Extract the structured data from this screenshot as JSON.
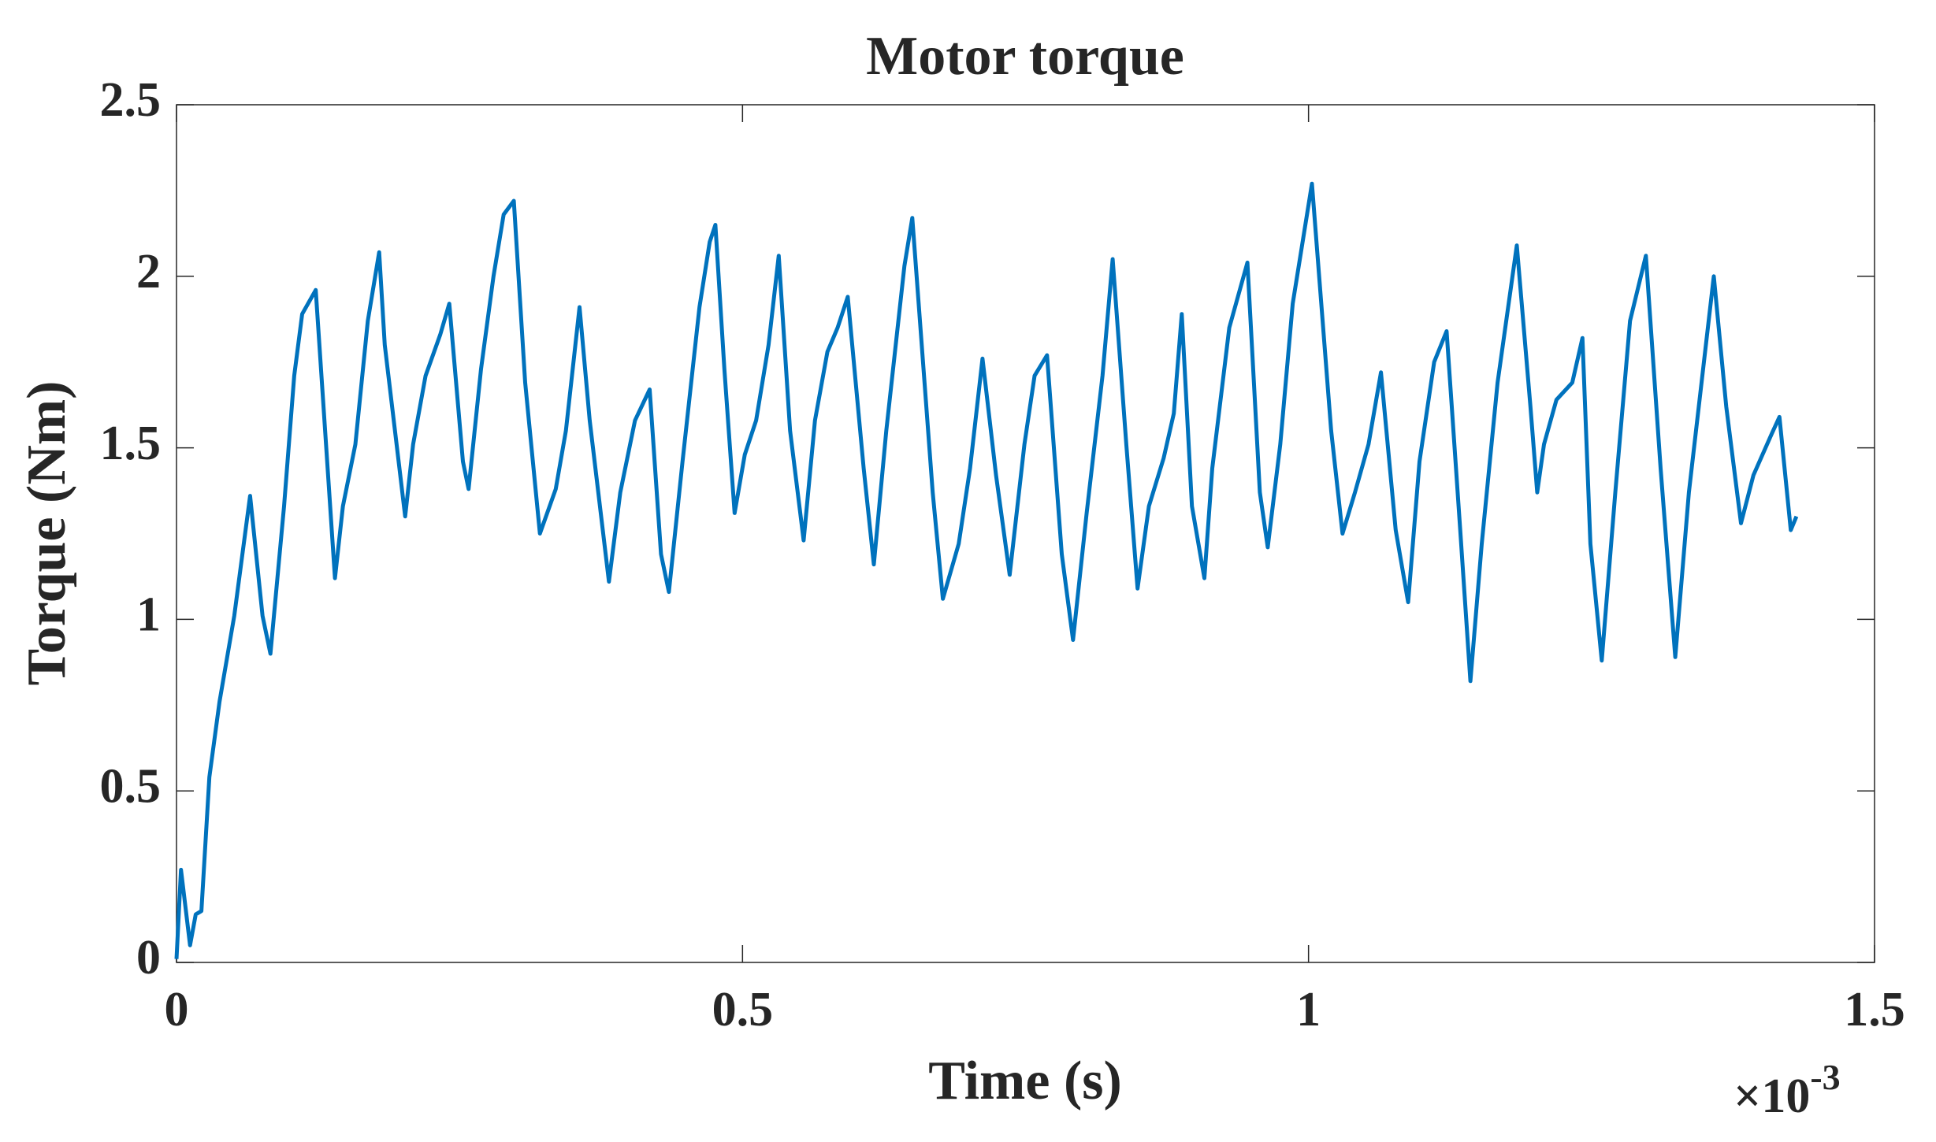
{
  "chart_data": {
    "type": "line",
    "title": "Motor torque",
    "x_label": "Time (s)",
    "y_label": "Torque (Nm)",
    "x_multiplier": {
      "base": "×10",
      "exponent": "-3"
    },
    "color": "#0072bd",
    "grid": false,
    "xlim": [
      0,
      1.5
    ],
    "xticks": [
      0,
      0.5,
      1,
      1.5
    ],
    "ylim": [
      0,
      2.5
    ],
    "yticks": [
      0,
      0.5,
      1,
      1.5,
      2,
      2.5
    ],
    "x": [
      0,
      0.004,
      0.012,
      0.017,
      0.022,
      0.029,
      0.038,
      0.051,
      0.065,
      0.076,
      0.083,
      0.095,
      0.104,
      0.111,
      0.123,
      0.14,
      0.147,
      0.158,
      0.169,
      0.179,
      0.184,
      0.202,
      0.209,
      0.22,
      0.233,
      0.241,
      0.253,
      0.258,
      0.269,
      0.28,
      0.289,
      0.298,
      0.308,
      0.321,
      0.335,
      0.344,
      0.356,
      0.365,
      0.382,
      0.392,
      0.405,
      0.418,
      0.428,
      0.435,
      0.447,
      0.462,
      0.471,
      0.476,
      0.484,
      0.493,
      0.502,
      0.512,
      0.523,
      0.532,
      0.542,
      0.554,
      0.564,
      0.575,
      0.584,
      0.593,
      0.607,
      0.616,
      0.627,
      0.643,
      0.65,
      0.668,
      0.677,
      0.691,
      0.701,
      0.712,
      0.724,
      0.736,
      0.749,
      0.758,
      0.769,
      0.782,
      0.792,
      0.804,
      0.818,
      0.827,
      0.839,
      0.849,
      0.859,
      0.872,
      0.881,
      0.888,
      0.897,
      0.908,
      0.915,
      0.93,
      0.946,
      0.957,
      0.964,
      0.975,
      0.986,
      1.003,
      1.02,
      1.03,
      1.041,
      1.053,
      1.064,
      1.077,
      1.088,
      1.098,
      1.111,
      1.122,
      1.134,
      1.143,
      1.153,
      1.167,
      1.184,
      1.196,
      1.202,
      1.208,
      1.219,
      1.233,
      1.242,
      1.249,
      1.259,
      1.271,
      1.284,
      1.298,
      1.311,
      1.324,
      1.336,
      1.358,
      1.369,
      1.382,
      1.393,
      1.409,
      1.416,
      1.426,
      1.431
    ],
    "values": [
      0.01,
      0.27,
      0.05,
      0.14,
      0.15,
      0.54,
      0.76,
      1.01,
      1.36,
      1.01,
      0.9,
      1.33,
      1.71,
      1.89,
      1.96,
      1.12,
      1.33,
      1.51,
      1.87,
      2.07,
      1.8,
      1.3,
      1.51,
      1.71,
      1.83,
      1.92,
      1.46,
      1.38,
      1.73,
      2.0,
      2.18,
      2.22,
      1.69,
      1.25,
      1.38,
      1.55,
      1.91,
      1.58,
      1.11,
      1.37,
      1.58,
      1.67,
      1.19,
      1.08,
      1.46,
      1.91,
      2.1,
      2.15,
      1.73,
      1.31,
      1.48,
      1.58,
      1.8,
      2.06,
      1.55,
      1.23,
      1.58,
      1.78,
      1.85,
      1.94,
      1.44,
      1.16,
      1.55,
      2.03,
      2.17,
      1.37,
      1.06,
      1.22,
      1.44,
      1.76,
      1.42,
      1.13,
      1.51,
      1.71,
      1.77,
      1.19,
      0.94,
      1.31,
      1.71,
      2.05,
      1.51,
      1.09,
      1.33,
      1.47,
      1.6,
      1.89,
      1.33,
      1.12,
      1.44,
      1.85,
      2.04,
      1.37,
      1.21,
      1.51,
      1.92,
      2.27,
      1.55,
      1.25,
      1.37,
      1.51,
      1.72,
      1.26,
      1.05,
      1.46,
      1.75,
      1.84,
      1.26,
      0.82,
      1.22,
      1.69,
      2.09,
      1.62,
      1.37,
      1.51,
      1.64,
      1.69,
      1.82,
      1.22,
      0.88,
      1.37,
      1.87,
      2.06,
      1.44,
      0.89,
      1.37,
      2.0,
      1.62,
      1.28,
      1.42,
      1.54,
      1.59,
      1.26,
      1.3
    ]
  }
}
